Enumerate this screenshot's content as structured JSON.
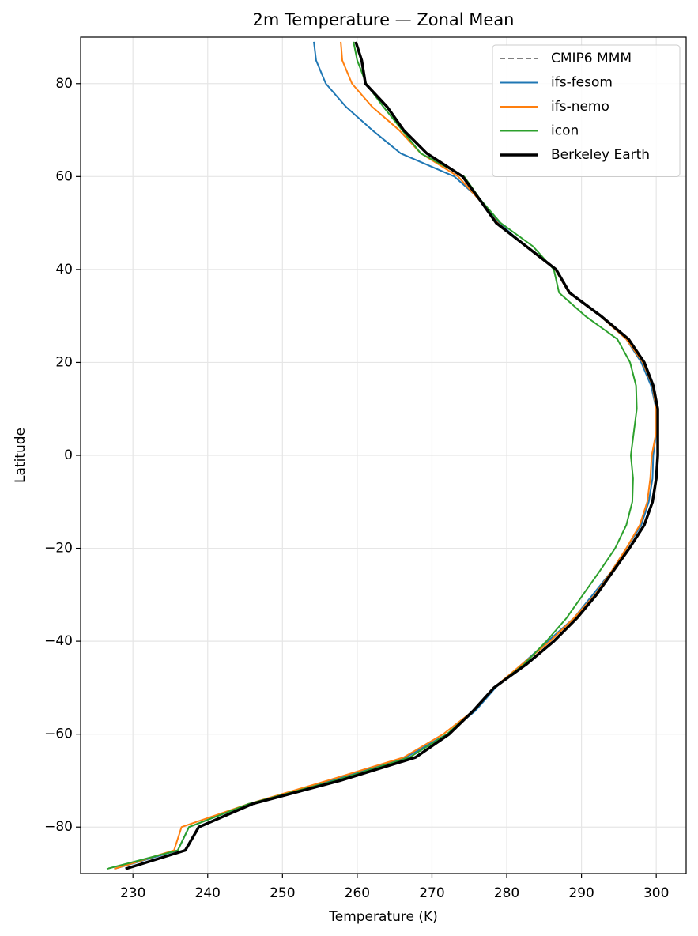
{
  "chart_data": {
    "type": "line",
    "title": "2m Temperature — Zonal Mean",
    "x_label": "Temperature (K)",
    "y_label": "Latitude",
    "y": [
      -89,
      -85,
      -80,
      -75,
      -70,
      -65,
      -60,
      -55,
      -50,
      -45,
      -40,
      -35,
      -30,
      -25,
      -20,
      -15,
      -10,
      -5,
      0,
      5,
      10,
      15,
      20,
      25,
      30,
      35,
      40,
      45,
      50,
      55,
      60,
      65,
      70,
      75,
      80,
      85,
      89
    ],
    "series": [
      {
        "name": "CMIP6 MMM",
        "color": "#7f7f7f",
        "linestyle": "dashed",
        "linewidth": 2,
        "values": [
          null,
          null,
          null,
          null,
          null,
          null,
          null,
          null,
          null,
          null,
          null,
          null,
          null,
          null,
          null,
          null,
          null,
          null,
          null,
          null,
          null,
          null,
          null,
          null,
          null,
          null,
          null,
          null,
          null,
          null,
          null,
          null,
          null,
          null,
          null,
          null,
          null
        ]
      },
      {
        "name": "ifs-fesom",
        "color": "#1f77b4",
        "linestyle": "solid",
        "linewidth": 2,
        "values": [
          227.5,
          236,
          237.5,
          245.5,
          256.5,
          266.5,
          272,
          275.8,
          278.5,
          282,
          285.5,
          289,
          291.5,
          294,
          296,
          298,
          299,
          299.5,
          299.6,
          300,
          300,
          299.3,
          298,
          296,
          292.5,
          288.3,
          286.5,
          282.5,
          279,
          276.5,
          273,
          265.8,
          262,
          258.5,
          255.8,
          254.5,
          254.2
        ]
      },
      {
        "name": "ifs-nemo",
        "color": "#ff7f0e",
        "linestyle": "solid",
        "linewidth": 2,
        "values": [
          227.5,
          235.5,
          236.5,
          245.5,
          256,
          266.2,
          271.5,
          275.5,
          278.3,
          282,
          285.8,
          289,
          291.8,
          294,
          296,
          297.8,
          298.8,
          299.2,
          299.4,
          300,
          300,
          299.5,
          298.2,
          296,
          292.5,
          288.3,
          286.5,
          282.5,
          278.8,
          276.3,
          273.5,
          268.5,
          265.6,
          262,
          259.3,
          258,
          257.8
        ]
      },
      {
        "name": "icon",
        "color": "#2ca02c",
        "linestyle": "solid",
        "linewidth": 2,
        "values": [
          226.5,
          236,
          237.5,
          245.5,
          257,
          267,
          272,
          275.5,
          278.3,
          282.3,
          285.3,
          288,
          290.2,
          292.4,
          294.5,
          296,
          296.8,
          296.9,
          296.6,
          297,
          297.4,
          297.3,
          296.5,
          294.8,
          290.5,
          287,
          286.3,
          283.5,
          279.2,
          276.5,
          274.3,
          268.5,
          266,
          263.5,
          261.2,
          260,
          259.5
        ]
      },
      {
        "name": "Berkeley Earth",
        "color": "#000000",
        "linestyle": "solid",
        "linewidth": 3.5,
        "values": [
          229,
          237,
          238.8,
          246,
          257.7,
          267.8,
          272.3,
          275.5,
          278.3,
          282.6,
          286.3,
          289.4,
          292,
          294.2,
          296.4,
          298.4,
          299.5,
          300,
          300.2,
          300.2,
          300.2,
          299.6,
          298.4,
          296.3,
          292.6,
          288.4,
          286.6,
          282.6,
          278.6,
          276.4,
          274.1,
          269.3,
          266.2,
          264,
          261.1,
          260.6,
          259.8
        ]
      }
    ],
    "xlim": [
      223,
      304
    ],
    "xticks": [
      230,
      240,
      250,
      260,
      270,
      280,
      290,
      300
    ],
    "ylim": [
      -90,
      90
    ],
    "yticks": [
      {
        "value": -80,
        "label": "−80"
      },
      {
        "value": -60,
        "label": "−60"
      },
      {
        "value": -40,
        "label": "−40"
      },
      {
        "value": -20,
        "label": "−20"
      },
      0,
      20,
      40,
      60,
      80
    ],
    "grid": true,
    "legend": "upper right"
  }
}
